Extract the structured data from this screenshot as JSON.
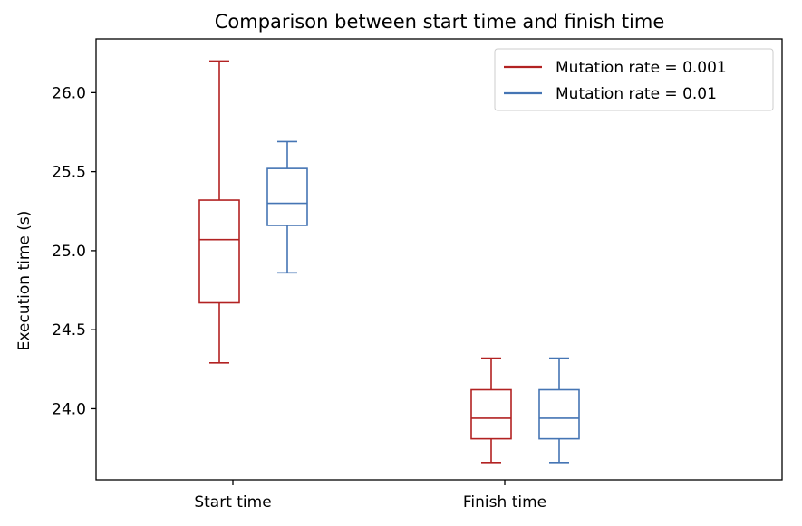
{
  "chart_data": {
    "type": "box",
    "title": "Comparison between start time and finish time",
    "xlabel": "",
    "ylabel": "Execution time (s)",
    "categories": [
      "Start time",
      "Finish time"
    ],
    "ylim": [
      23.55,
      26.34
    ],
    "yticks": [
      24.0,
      24.5,
      25.0,
      25.5,
      26.0
    ],
    "ytick_labels": [
      "24.0",
      "24.5",
      "25.0",
      "25.5",
      "26.0"
    ],
    "grid": false,
    "legend_position": "top-right",
    "series": [
      {
        "name": "Mutation rate = 0.001",
        "color": "#b22222",
        "boxes": [
          {
            "category": "Start time",
            "min": 24.29,
            "q1": 24.67,
            "median": 25.07,
            "q3": 25.32,
            "max": 26.2
          },
          {
            "category": "Finish time",
            "min": 23.66,
            "q1": 23.81,
            "median": 23.94,
            "q3": 24.12,
            "max": 24.32
          }
        ]
      },
      {
        "name": "Mutation rate = 0.01",
        "color": "#4575b4",
        "boxes": [
          {
            "category": "Start time",
            "min": 24.86,
            "q1": 25.16,
            "median": 25.3,
            "q3": 25.52,
            "max": 25.69
          },
          {
            "category": "Finish time",
            "min": 23.66,
            "q1": 23.81,
            "median": 23.94,
            "q3": 24.12,
            "max": 24.32
          }
        ]
      }
    ]
  }
}
